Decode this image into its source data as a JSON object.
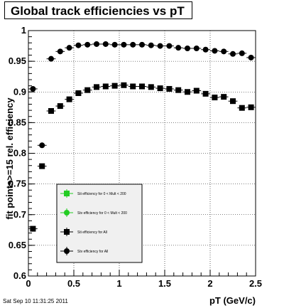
{
  "chart_data": {
    "type": "scatter",
    "title": "Global track efficiencies vs pT",
    "xlabel": "pT (GeV/c)",
    "ylabel": "fit points>=15 rel. efficiency",
    "xlim": [
      0,
      2.5
    ],
    "ylim": [
      0.6,
      1.0
    ],
    "x_ticks": [
      "0",
      "0.5",
      "1",
      "1.5",
      "2",
      "2.5"
    ],
    "y_ticks": [
      "0.6",
      "0.65",
      "0.7",
      "0.75",
      "0.8",
      "0.85",
      "0.9",
      "0.95",
      "1"
    ],
    "grid": true,
    "legend_position": "lower-left",
    "series": [
      {
        "name": "Stv efficiency  for All",
        "marker": "circle",
        "color": "#000000",
        "x": [
          0.05,
          0.15,
          0.25,
          0.35,
          0.45,
          0.55,
          0.65,
          0.75,
          0.85,
          0.95,
          1.05,
          1.15,
          1.25,
          1.35,
          1.45,
          1.55,
          1.65,
          1.75,
          1.85,
          1.95,
          2.05,
          2.15,
          2.25,
          2.35,
          2.45
        ],
        "y": [
          0.905,
          0.813,
          0.954,
          0.966,
          0.972,
          0.976,
          0.977,
          0.978,
          0.978,
          0.977,
          0.977,
          0.977,
          0.977,
          0.976,
          0.975,
          0.975,
          0.972,
          0.971,
          0.971,
          0.969,
          0.967,
          0.966,
          0.962,
          0.963,
          0.956
        ]
      },
      {
        "name": "Sti efficiency  for All",
        "marker": "square",
        "color": "#000000",
        "x": [
          0.05,
          0.15,
          0.25,
          0.35,
          0.45,
          0.55,
          0.65,
          0.75,
          0.85,
          0.95,
          1.05,
          1.15,
          1.25,
          1.35,
          1.45,
          1.55,
          1.65,
          1.75,
          1.85,
          1.95,
          2.05,
          2.15,
          2.25,
          2.35,
          2.45
        ],
        "y": [
          0.677,
          0.779,
          0.869,
          0.877,
          0.888,
          0.898,
          0.903,
          0.908,
          0.909,
          0.91,
          0.911,
          0.909,
          0.909,
          0.908,
          0.906,
          0.905,
          0.903,
          0.9,
          0.902,
          0.897,
          0.891,
          0.892,
          0.885,
          0.874,
          0.875
        ]
      },
      {
        "name": "Sti efficiency  for 0 < Mult < 200",
        "marker": "square",
        "color": "#22cc22",
        "x": [],
        "y": []
      },
      {
        "name": "Stv efficiency  for 0 < Mult < 200",
        "marker": "circle",
        "color": "#22cc22",
        "x": [],
        "y": []
      }
    ],
    "legend_entries": [
      {
        "label": "Sti efficiency  for 0 < Mult < 200",
        "marker": "square",
        "color": "#22cc22"
      },
      {
        "label": "Stv efficiency  for 0 < Mult < 200",
        "marker": "circle",
        "color": "#22cc22"
      },
      {
        "label": "Sti efficiency  for All",
        "marker": "square",
        "color": "#000000"
      },
      {
        "label": "Stv efficiency  for All",
        "marker": "circle",
        "color": "#000000"
      }
    ]
  },
  "datestamp": "Sat Sep 10 11:31:25 2011"
}
